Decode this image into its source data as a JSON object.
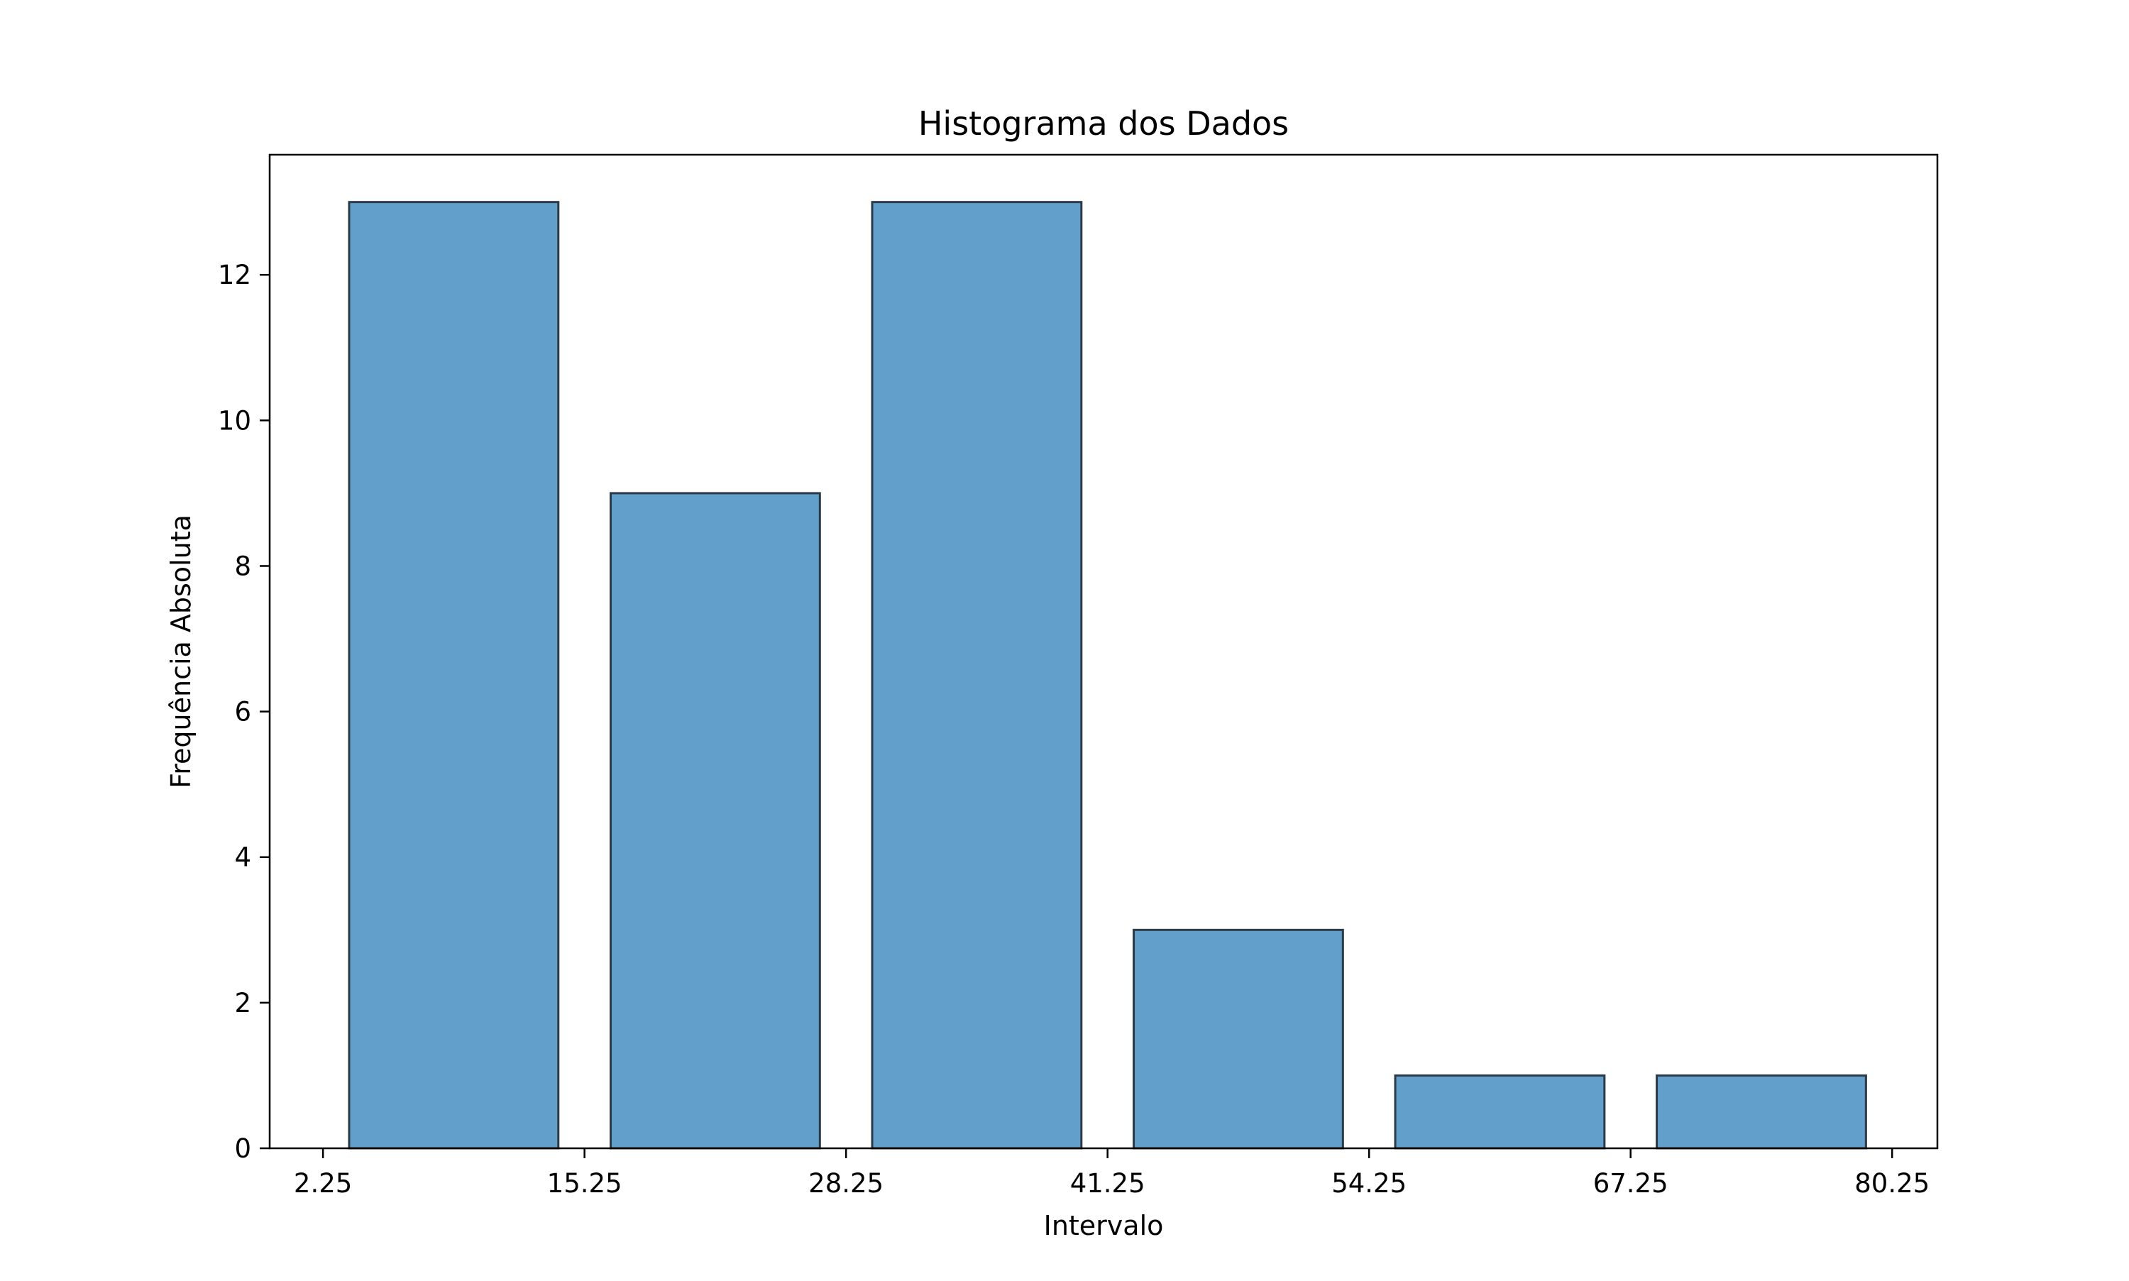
{
  "chart_data": {
    "type": "bar",
    "title": "Histograma dos Dados",
    "xlabel": "Intervalo",
    "ylabel": "Frequência Absoluta",
    "bins": [
      {
        "start": 2.25,
        "end": 15.25,
        "value": 13
      },
      {
        "start": 15.25,
        "end": 28.25,
        "value": 9
      },
      {
        "start": 28.25,
        "end": 41.25,
        "value": 13
      },
      {
        "start": 41.25,
        "end": 54.25,
        "value": 3
      },
      {
        "start": 54.25,
        "end": 67.25,
        "value": 1
      },
      {
        "start": 67.25,
        "end": 80.25,
        "value": 1
      }
    ],
    "x_ticks": [
      "2.25",
      "15.25",
      "28.25",
      "41.25",
      "54.25",
      "67.25",
      "80.25"
    ],
    "y_ticks": [
      "0",
      "2",
      "4",
      "6",
      "8",
      "10",
      "12"
    ],
    "xlim": [
      -0.4,
      82.5
    ],
    "ylim": [
      0,
      13.65
    ],
    "grid": false,
    "legend": "none",
    "bar_color": "#629fca",
    "bar_edge_color": "#2b3a45"
  }
}
